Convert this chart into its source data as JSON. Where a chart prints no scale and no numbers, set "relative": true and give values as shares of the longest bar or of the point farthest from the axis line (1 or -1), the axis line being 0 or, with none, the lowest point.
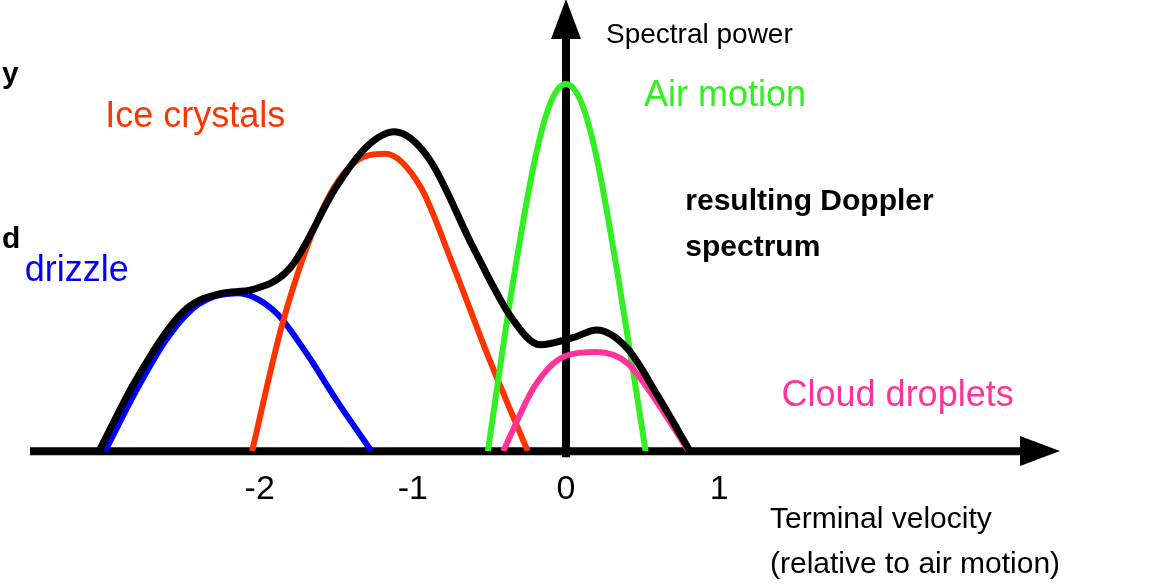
{
  "chart_data": {
    "type": "line",
    "relative": true,
    "xlabel": "Terminal velocity\n(relative to air motion)",
    "ylabel": "Spectral power",
    "xlim": [
      -3.5,
      3.03
    ],
    "xticks": [
      -2,
      -1,
      0,
      1
    ],
    "legend": false,
    "marker": "none",
    "line_style": "solid",
    "annotations": [
      "y",
      "d"
    ],
    "series": [
      {
        "name": "drizzle",
        "color": "#0000ff",
        "x": [
          -3.01,
          -2.8,
          -2.6,
          -2.4,
          -2.15,
          -1.9,
          -1.7,
          -1.5,
          -1.27
        ],
        "values": [
          0,
          0.17,
          0.31,
          0.4,
          0.43,
          0.38,
          0.27,
          0.14,
          0
        ]
      },
      {
        "name": "Ice crystals",
        "color": "#ff3300",
        "x": [
          -2.05,
          -1.85,
          -1.6,
          -1.4,
          -1.18,
          -0.95,
          -0.75,
          -0.5,
          -0.25
        ],
        "values": [
          0,
          0.35,
          0.65,
          0.78,
          0.81,
          0.72,
          0.52,
          0.25,
          0
        ]
      },
      {
        "name": "Air motion",
        "color": "#33ee22",
        "x": [
          -0.51,
          -0.35,
          -0.2,
          -0.1,
          0,
          0.1,
          0.2,
          0.35,
          0.52
        ],
        "values": [
          0,
          0.45,
          0.8,
          0.95,
          1,
          0.95,
          0.8,
          0.45,
          0
        ]
      },
      {
        "name": "Cloud droplets",
        "color": "#ff3399",
        "x": [
          -0.41,
          -0.2,
          0,
          0.2,
          0.4,
          0.6,
          0.8
        ],
        "values": [
          0,
          0.18,
          0.26,
          0.27,
          0.24,
          0.13,
          0
        ]
      },
      {
        "name": "resulting Doppler spectrum",
        "color": "#000000",
        "x": [
          -3.05,
          -2.8,
          -2.5,
          -2.25,
          -2.05,
          -1.8,
          -1.5,
          -1.3,
          -1.12,
          -0.9,
          -0.6,
          -0.35,
          -0.17,
          0.05,
          0.2,
          0.4,
          0.6,
          0.81
        ],
        "values": [
          0,
          0.2,
          0.38,
          0.43,
          0.44,
          0.5,
          0.72,
          0.83,
          0.87,
          0.8,
          0.55,
          0.36,
          0.29,
          0.31,
          0.33,
          0.28,
          0.15,
          0
        ]
      }
    ]
  }
}
